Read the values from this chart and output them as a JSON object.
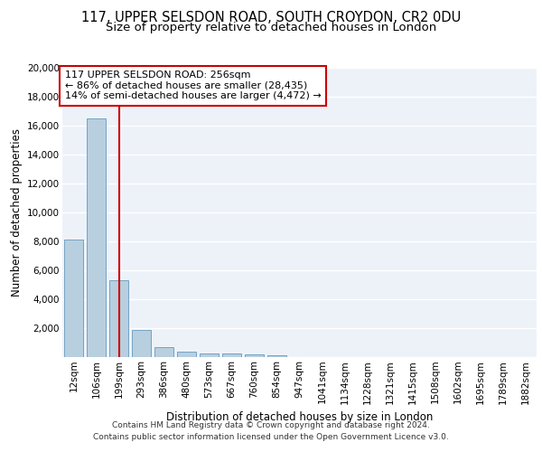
{
  "title_line1": "117, UPPER SELSDON ROAD, SOUTH CROYDON, CR2 0DU",
  "title_line2": "Size of property relative to detached houses in London",
  "xlabel": "Distribution of detached houses by size in London",
  "ylabel": "Number of detached properties",
  "footer_line1": "Contains HM Land Registry data © Crown copyright and database right 2024.",
  "footer_line2": "Contains public sector information licensed under the Open Government Licence v3.0.",
  "annotation_line1": "117 UPPER SELSDON ROAD: 256sqm",
  "annotation_line2": "← 86% of detached houses are smaller (28,435)",
  "annotation_line3": "14% of semi-detached houses are larger (4,472) →",
  "bar_labels": [
    "12sqm",
    "106sqm",
    "199sqm",
    "293sqm",
    "386sqm",
    "480sqm",
    "573sqm",
    "667sqm",
    "760sqm",
    "854sqm",
    "947sqm",
    "1041sqm",
    "1134sqm",
    "1228sqm",
    "1321sqm",
    "1415sqm",
    "1508sqm",
    "1602sqm",
    "1695sqm",
    "1789sqm",
    "1882sqm"
  ],
  "bar_values": [
    8100,
    16500,
    5300,
    1850,
    700,
    350,
    270,
    220,
    170,
    140,
    0,
    0,
    0,
    0,
    0,
    0,
    0,
    0,
    0,
    0,
    0
  ],
  "bar_color": "#b8cfe0",
  "bar_edge_color": "#6699bb",
  "highlight_bar_index": 2,
  "highlight_color": "#cc0000",
  "annotation_box_color": "#cc0000",
  "ylim": [
    0,
    20000
  ],
  "yticks": [
    0,
    2000,
    4000,
    6000,
    8000,
    10000,
    12000,
    14000,
    16000,
    18000,
    20000
  ],
  "background_color": "#edf2f9",
  "grid_color": "#ffffff",
  "title_fontsize": 10.5,
  "subtitle_fontsize": 9.5,
  "axis_label_fontsize": 8.5,
  "tick_fontsize": 7.5,
  "annotation_fontsize": 8,
  "footer_fontsize": 6.5
}
